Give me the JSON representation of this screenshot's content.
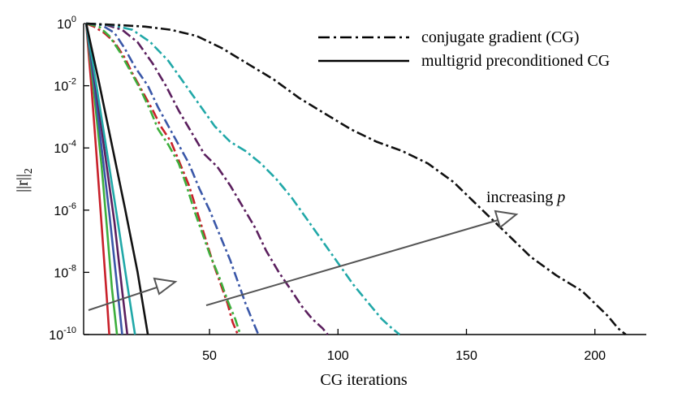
{
  "chart_data": {
    "type": "line",
    "xlabel": "CG iterations",
    "ylabel_text": "||r||",
    "ylabel_sub": "2",
    "x_ticks": [
      "50",
      "100",
      "150",
      "200"
    ],
    "y_ticks": [
      {
        "base": "10",
        "exp": "0"
      },
      {
        "base": "10",
        "exp": "-2"
      },
      {
        "base": "10",
        "exp": "-4"
      },
      {
        "base": "10",
        "exp": "-6"
      },
      {
        "base": "10",
        "exp": "-8"
      },
      {
        "base": "10",
        "exp": "-10"
      }
    ],
    "xlim": [
      1,
      220
    ],
    "ylim_log10": [
      -10,
      0
    ],
    "y_scale": "log",
    "legend": {
      "position": "top-right",
      "entries": [
        {
          "label": "conjugate gradient (CG)",
          "style": "dashdot"
        },
        {
          "label": "multigrid preconditioned CG",
          "style": "solid"
        }
      ]
    },
    "annotations": [
      {
        "text_main": "increasing ",
        "text_var": "p"
      }
    ],
    "colors": [
      "#c8202a",
      "#3daf3d",
      "#3a57a8",
      "#5b1f5e",
      "#21a8a8",
      "#111111"
    ],
    "series": [
      {
        "style": "dashdot",
        "color": "#c8202a",
        "x": [
          2,
          5,
          9,
          13,
          17,
          20,
          24,
          28,
          31,
          35,
          38,
          42,
          45,
          48,
          51,
          54,
          57,
          59,
          61
        ],
        "y": [
          0,
          -0.1,
          -0.3,
          -0.6,
          -1.1,
          -1.6,
          -2.2,
          -2.8,
          -3.3,
          -3.8,
          -4.4,
          -5.2,
          -6.0,
          -6.8,
          -7.6,
          -8.3,
          -9.0,
          -9.6,
          -10
        ]
      },
      {
        "style": "dashdot",
        "color": "#3daf3d",
        "x": [
          2,
          7,
          11,
          15,
          19,
          23,
          27,
          30,
          34,
          38,
          41,
          44,
          47,
          50,
          54,
          57,
          60,
          62
        ],
        "y": [
          0,
          -0.1,
          -0.4,
          -0.9,
          -1.5,
          -2.1,
          -2.8,
          -3.4,
          -3.9,
          -4.5,
          -5.2,
          -6.0,
          -6.7,
          -7.4,
          -8.2,
          -8.9,
          -9.5,
          -10
        ]
      },
      {
        "style": "dashdot",
        "color": "#3a57a8",
        "x": [
          2,
          8,
          13,
          17,
          21,
          26,
          30,
          34,
          38,
          42,
          46,
          50,
          54,
          58,
          61,
          64,
          67,
          69
        ],
        "y": [
          0,
          -0.05,
          -0.3,
          -0.8,
          -1.4,
          -2.0,
          -2.7,
          -3.3,
          -3.9,
          -4.5,
          -5.3,
          -6.0,
          -6.8,
          -7.6,
          -8.3,
          -9.0,
          -9.6,
          -10
        ]
      },
      {
        "style": "dashdot",
        "color": "#5b1f5e",
        "x": [
          2,
          10,
          16,
          22,
          28,
          33,
          38,
          43,
          48,
          53,
          58,
          63,
          68,
          72,
          77,
          82,
          86,
          90,
          94,
          96
        ],
        "y": [
          0,
          -0.05,
          -0.2,
          -0.6,
          -1.3,
          -2.0,
          -2.8,
          -3.5,
          -4.2,
          -4.6,
          -5.2,
          -5.9,
          -6.6,
          -7.3,
          -8.0,
          -8.6,
          -9.1,
          -9.5,
          -9.8,
          -10
        ]
      },
      {
        "style": "dashdot",
        "color": "#21a8a8",
        "x": [
          2,
          12,
          20,
          27,
          34,
          40,
          46,
          52,
          58,
          64,
          70,
          76,
          82,
          88,
          94,
          100,
          106,
          112,
          117,
          121,
          124
        ],
        "y": [
          0,
          -0.05,
          -0.2,
          -0.6,
          -1.2,
          -1.9,
          -2.6,
          -3.3,
          -3.8,
          -4.1,
          -4.5,
          -5.0,
          -5.6,
          -6.3,
          -7.0,
          -7.7,
          -8.4,
          -9.0,
          -9.5,
          -9.8,
          -10
        ]
      },
      {
        "style": "dashdot",
        "color": "#111111",
        "x": [
          2,
          15,
          25,
          35,
          45,
          55,
          65,
          75,
          85,
          95,
          105,
          115,
          125,
          135,
          145,
          155,
          165,
          175,
          185,
          195,
          200,
          205,
          209,
          212
        ],
        "y": [
          0,
          -0.05,
          -0.1,
          -0.2,
          -0.4,
          -0.8,
          -1.3,
          -1.8,
          -2.4,
          -2.9,
          -3.4,
          -3.8,
          -4.1,
          -4.5,
          -5.1,
          -5.9,
          -6.7,
          -7.5,
          -8.1,
          -8.6,
          -9.0,
          -9.4,
          -9.8,
          -10
        ]
      },
      {
        "style": "solid",
        "color": "#c8202a",
        "x": [
          2,
          4,
          6,
          8,
          10,
          11
        ],
        "y": [
          0,
          -2,
          -4.2,
          -6.5,
          -8.8,
          -10
        ]
      },
      {
        "style": "solid",
        "color": "#3daf3d",
        "x": [
          2,
          5,
          8,
          10,
          12,
          14
        ],
        "y": [
          0,
          -2.2,
          -4.6,
          -6.5,
          -8.5,
          -10
        ]
      },
      {
        "style": "solid",
        "color": "#3a57a8",
        "x": [
          2,
          5,
          8,
          11,
          14,
          16
        ],
        "y": [
          0,
          -1.9,
          -4.0,
          -6.1,
          -8.4,
          -10
        ]
      },
      {
        "style": "solid",
        "color": "#5b1f5e",
        "x": [
          2,
          6,
          9,
          13,
          16,
          18
        ],
        "y": [
          0,
          -2.2,
          -4.0,
          -6.4,
          -8.6,
          -10
        ]
      },
      {
        "style": "solid",
        "color": "#21a8a8",
        "x": [
          2,
          6,
          10,
          14,
          18,
          21
        ],
        "y": [
          0,
          -2.0,
          -4.1,
          -6.2,
          -8.4,
          -10
        ]
      },
      {
        "style": "solid",
        "color": "#111111",
        "x": [
          2,
          7,
          12,
          17,
          22,
          26
        ],
        "y": [
          0,
          -1.9,
          -3.9,
          -5.9,
          -8.0,
          -10
        ]
      }
    ]
  }
}
